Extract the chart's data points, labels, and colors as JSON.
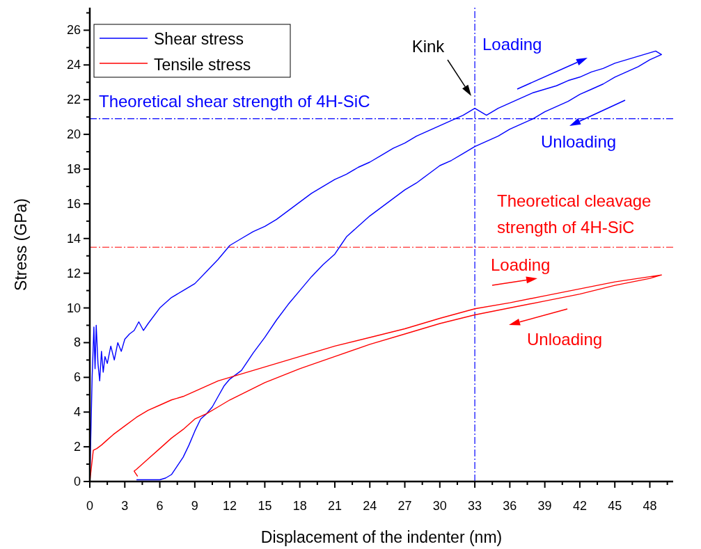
{
  "chart_data": {
    "type": "line",
    "xlabel": "Displacement of the indenter (nm)",
    "ylabel": "Stress (GPa)",
    "xlim": [
      0,
      50
    ],
    "ylim": [
      0,
      27.3
    ],
    "xticks": [
      0,
      {
        "value": 1.5,
        "label": null
      },
      3,
      {
        "value": 4.5,
        "label": null
      },
      6,
      {
        "value": 7.5,
        "label": null
      },
      9,
      {
        "value": 10.5,
        "label": null
      },
      12,
      {
        "value": 13.5,
        "label": null
      },
      15,
      {
        "value": 16.5,
        "label": null
      },
      18,
      {
        "value": 19.5,
        "label": null
      },
      21,
      {
        "value": 22.5,
        "label": null
      },
      24,
      {
        "value": 25.5,
        "label": null
      },
      27,
      {
        "value": 28.5,
        "label": null
      },
      30,
      {
        "value": 31.5,
        "label": null
      },
      33,
      {
        "value": 34.5,
        "label": null
      },
      36,
      {
        "value": 37.5,
        "label": null
      },
      39,
      {
        "value": 40.5,
        "label": null
      },
      42,
      {
        "value": 43.5,
        "label": null
      },
      45,
      {
        "value": 46.5,
        "label": null
      },
      48,
      {
        "value": 49.5,
        "label": null
      }
    ],
    "yticks": [
      0,
      {
        "value": 1,
        "label": null
      },
      2,
      {
        "value": 3,
        "label": null
      },
      4,
      {
        "value": 5,
        "label": null
      },
      6,
      {
        "value": 7,
        "label": null
      },
      8,
      {
        "value": 9,
        "label": null
      },
      10,
      {
        "value": 11,
        "label": null
      },
      12,
      {
        "value": 13,
        "label": null
      },
      14,
      {
        "value": 15,
        "label": null
      },
      16,
      {
        "value": 17,
        "label": null
      },
      18,
      {
        "value": 19,
        "label": null
      },
      20,
      {
        "value": 21,
        "label": null
      },
      22,
      {
        "value": 23,
        "label": null
      },
      24,
      {
        "value": 25,
        "label": null
      },
      26,
      {
        "value": 27,
        "label": null
      }
    ],
    "legend": "top left",
    "grid": false,
    "marker": "none",
    "line_style": "solid",
    "series": [
      {
        "name": "Shear stress",
        "color": "#0000ff",
        "x": [
          0,
          0.2,
          0.35,
          0.45,
          0.55,
          0.7,
          0.85,
          1.0,
          1.15,
          1.3,
          1.5,
          1.8,
          2.1,
          2.4,
          2.7,
          3.0,
          3.4,
          3.8,
          4.2,
          4.6,
          5.0,
          6,
          7,
          8,
          9,
          10,
          11,
          12,
          13,
          14,
          15,
          16,
          17,
          18,
          19,
          20,
          21,
          22,
          23,
          24,
          25,
          26,
          27,
          28,
          29,
          30,
          31,
          32,
          33,
          33.5,
          34,
          35,
          36,
          37,
          38,
          39,
          40,
          41,
          42,
          43,
          44,
          45,
          46,
          47,
          48,
          48.5,
          49,
          48,
          47,
          46,
          45,
          44,
          43,
          42,
          41,
          40,
          39,
          38,
          37,
          36,
          35,
          34,
          33,
          32,
          31,
          30,
          29,
          28,
          27,
          26,
          25,
          24,
          23,
          22,
          21.5,
          21,
          20,
          19,
          18,
          17,
          16,
          15,
          14,
          13,
          12,
          11.5,
          11,
          10.5,
          10,
          9.5,
          9,
          8.5,
          8,
          7.5,
          7,
          6.5,
          6,
          5.5,
          5,
          4.5,
          4
        ],
        "values": [
          0,
          6,
          8.9,
          6.5,
          9,
          6.8,
          5.8,
          7.5,
          6.3,
          7.2,
          6.8,
          7.8,
          7,
          8,
          7.5,
          8.2,
          8.5,
          8.7,
          9.2,
          8.7,
          9.1,
          10,
          10.6,
          11,
          11.4,
          12.1,
          12.8,
          13.6,
          14,
          14.4,
          14.7,
          15.1,
          15.6,
          16.1,
          16.6,
          17,
          17.4,
          17.7,
          18.1,
          18.4,
          18.8,
          19.2,
          19.5,
          19.9,
          20.2,
          20.5,
          20.8,
          21.1,
          21.5,
          21.3,
          21.1,
          21.5,
          21.8,
          22.1,
          22.4,
          22.6,
          22.8,
          23.1,
          23.3,
          23.6,
          23.8,
          24.1,
          24.3,
          24.5,
          24.7,
          24.8,
          24.6,
          24.3,
          23.9,
          23.6,
          23.3,
          22.9,
          22.6,
          22.3,
          21.9,
          21.6,
          21.3,
          20.9,
          20.6,
          20.3,
          19.9,
          19.6,
          19.3,
          18.9,
          18.5,
          18.2,
          17.7,
          17.2,
          16.8,
          16.3,
          15.8,
          15.3,
          14.7,
          14.1,
          13.6,
          13.1,
          12.5,
          11.8,
          11,
          10.2,
          9.3,
          8.3,
          7.4,
          6.4,
          5.9,
          5.5,
          4.9,
          4.3,
          3.9,
          3.6,
          2.9,
          2.1,
          1.4,
          0.9,
          0.4,
          0.2,
          0.1,
          0.1,
          0.1,
          0.1,
          0.1
        ]
      },
      {
        "name": "Tensile stress",
        "color": "#ff0000",
        "x": [
          0,
          0.3,
          0.6,
          1,
          1.5,
          2,
          3,
          4,
          5,
          6,
          7,
          8,
          9,
          10,
          11,
          12,
          13,
          14,
          15,
          16,
          18,
          21,
          24,
          27,
          30,
          33,
          36,
          39,
          42,
          45,
          48,
          49,
          48,
          45,
          42,
          39,
          36,
          33,
          30,
          27,
          24,
          21,
          18,
          15,
          12,
          11,
          10,
          9,
          8,
          7,
          6,
          5,
          4.5,
          4,
          3.8,
          4.1
        ],
        "values": [
          0,
          1.8,
          1.9,
          2.1,
          2.4,
          2.7,
          3.2,
          3.7,
          4.1,
          4.4,
          4.7,
          4.9,
          5.2,
          5.5,
          5.8,
          6.0,
          6.2,
          6.4,
          6.6,
          6.8,
          7.2,
          7.8,
          8.3,
          8.8,
          9.4,
          9.95,
          10.3,
          10.7,
          11.1,
          11.5,
          11.8,
          11.9,
          11.7,
          11.3,
          10.8,
          10.4,
          10.0,
          9.6,
          9.1,
          8.5,
          7.9,
          7.2,
          6.5,
          5.7,
          4.7,
          4.3,
          3.9,
          3.6,
          3.0,
          2.5,
          1.9,
          1.3,
          1.0,
          0.7,
          0.6,
          0.3
        ]
      }
    ],
    "ref_lines": [
      {
        "axis": "y",
        "value": 20.9,
        "color": "#0000ff",
        "line_style": "dashed"
      },
      {
        "axis": "x",
        "value": 33,
        "color": "#0000ff",
        "line_style": "dashed"
      },
      {
        "axis": "y",
        "value": 13.5,
        "color": "#ff0000",
        "line_style": "dashed"
      }
    ],
    "annotations": [
      "Kink",
      "Loading",
      "Unloading",
      "Theoretical shear strength of 4H-SiC",
      "Theoretical cleavage strength of 4H-SiC",
      "Loading",
      "Unloading"
    ]
  }
}
